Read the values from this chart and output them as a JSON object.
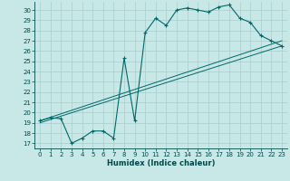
{
  "xlabel": "Humidex (Indice chaleur)",
  "bg_color": "#c8e8e8",
  "grid_color": "#a8cece",
  "line_color": "#006868",
  "xlim": [
    -0.5,
    23.5
  ],
  "ylim": [
    16.5,
    30.8
  ],
  "xticks": [
    0,
    1,
    2,
    3,
    4,
    5,
    6,
    7,
    8,
    9,
    10,
    11,
    12,
    13,
    14,
    15,
    16,
    17,
    18,
    19,
    20,
    21,
    22,
    23
  ],
  "yticks": [
    17,
    18,
    19,
    20,
    21,
    22,
    23,
    24,
    25,
    26,
    27,
    28,
    29,
    30
  ],
  "curve_x": [
    0,
    1,
    2,
    3,
    4,
    5,
    6,
    7,
    8,
    9,
    10,
    11,
    12,
    13,
    14,
    15,
    16,
    17,
    18,
    19,
    20,
    21,
    22,
    23
  ],
  "curve_y": [
    19.2,
    19.5,
    19.4,
    17.0,
    17.5,
    18.2,
    18.2,
    17.5,
    25.3,
    19.2,
    27.8,
    29.2,
    28.5,
    30.0,
    30.2,
    30.0,
    29.8,
    30.3,
    30.5,
    29.2,
    28.8,
    27.5,
    27.0,
    26.5
  ],
  "line2_x": [
    0,
    23
  ],
  "line2_y": [
    19.0,
    26.5
  ],
  "line3_x": [
    0,
    23
  ],
  "line3_y": [
    19.2,
    27.0
  ],
  "tick_fontsize": 5,
  "xlabel_fontsize": 6,
  "spine_color": "#004848"
}
